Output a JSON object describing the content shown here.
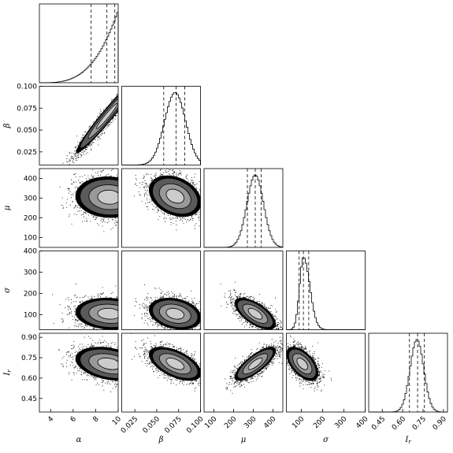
{
  "chart_data": {
    "type": "corner",
    "title": "",
    "parameters": [
      {
        "key": "alpha",
        "label": "α",
        "range": [
          3,
          10
        ],
        "ticks": [
          4,
          6,
          8,
          10
        ],
        "tick_labels": [
          "4",
          "6",
          "8",
          "10"
        ],
        "quantiles": [
          7.6,
          9.0,
          9.7
        ]
      },
      {
        "key": "beta",
        "label": "β",
        "range": [
          0.01,
          0.1
        ],
        "ticks": [
          0.025,
          0.05,
          0.075,
          0.1
        ],
        "tick_labels": [
          "0.025",
          "0.050",
          "0.075",
          "0.100"
        ],
        "quantiles": [
          0.058,
          0.072,
          0.082
        ]
      },
      {
        "key": "mu",
        "label": "μ",
        "range": [
          50,
          450
        ],
        "ticks": [
          100,
          200,
          300,
          400
        ],
        "tick_labels": [
          "100",
          "200",
          "300",
          "400"
        ],
        "quantiles": [
          270,
          310,
          340
        ]
      },
      {
        "key": "sigma",
        "label": "σ",
        "range": [
          30,
          400
        ],
        "ticks": [
          100,
          200,
          300,
          400
        ],
        "tick_labels": [
          "100",
          "200",
          "300",
          "400"
        ],
        "quantiles": [
          90,
          110,
          135
        ]
      },
      {
        "key": "I_r",
        "label": "I",
        "label_sub": "r",
        "range": [
          0.35,
          0.93
        ],
        "ticks": [
          0.45,
          0.6,
          0.75,
          0.9
        ],
        "tick_labels": [
          "0.45",
          "0.60",
          "0.75",
          "0.90"
        ],
        "quantiles": [
          0.65,
          0.71,
          0.76
        ]
      }
    ],
    "marginals": [
      {
        "type": "power",
        "start": 3,
        "stop": 10,
        "exponent": 3.2
      },
      {
        "type": "gauss",
        "mean": 0.071,
        "sd": 0.012
      },
      {
        "type": "gauss",
        "mean": 310,
        "sd": 42
      },
      {
        "type": "skew",
        "mode": 110,
        "sd_left": 18,
        "sd_right": 30
      },
      {
        "type": "gauss",
        "mean": 0.705,
        "sd": 0.05
      }
    ],
    "pairs": [
      {
        "x": "alpha",
        "y": "beta",
        "mean": [
          9.0,
          0.066
        ],
        "sd": [
          1.1,
          0.017
        ],
        "corr": 0.97,
        "trunc_x": 10
      },
      {
        "x": "alpha",
        "y": "mu",
        "mean": [
          9.2,
          305
        ],
        "sd": [
          1.2,
          42
        ],
        "corr": -0.05,
        "trunc_x": 10
      },
      {
        "x": "beta",
        "y": "mu",
        "mean": [
          0.071,
          310
        ],
        "sd": [
          0.012,
          42
        ],
        "corr": -0.3
      },
      {
        "x": "alpha",
        "y": "sigma",
        "mean": [
          9.2,
          105
        ],
        "sd": [
          1.2,
          30
        ],
        "corr": -0.1,
        "trunc_x": 10
      },
      {
        "x": "beta",
        "y": "sigma",
        "mean": [
          0.071,
          105
        ],
        "sd": [
          0.012,
          30
        ],
        "corr": -0.25
      },
      {
        "x": "mu",
        "y": "sigma",
        "mean": [
          310,
          105
        ],
        "sd": [
          42,
          30
        ],
        "corr": -0.65
      },
      {
        "x": "alpha",
        "y": "I_r",
        "mean": [
          9.2,
          0.705
        ],
        "sd": [
          1.2,
          0.05
        ],
        "corr": -0.3,
        "trunc_x": 10
      },
      {
        "x": "beta",
        "y": "I_r",
        "mean": [
          0.071,
          0.705
        ],
        "sd": [
          0.012,
          0.05
        ],
        "corr": -0.55
      },
      {
        "x": "mu",
        "y": "I_r",
        "mean": [
          310,
          0.705
        ],
        "sd": [
          42,
          0.05
        ],
        "corr": 0.78
      },
      {
        "x": "sigma",
        "y": "I_r",
        "mean": [
          105,
          0.705
        ],
        "sd": [
          30,
          0.05
        ],
        "corr": -0.55
      }
    ],
    "grid": false,
    "legend": "none"
  }
}
